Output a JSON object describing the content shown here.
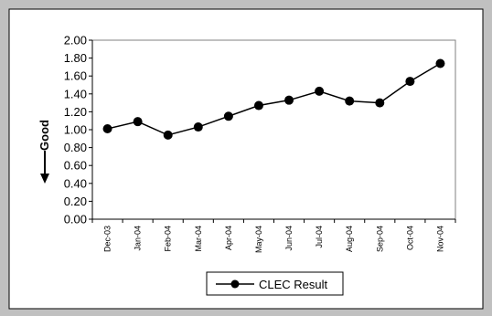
{
  "chart_data": {
    "type": "line",
    "categories": [
      "Dec-03",
      "Jan-04",
      "Feb-04",
      "Mar-04",
      "Apr-04",
      "May-04",
      "Jun-04",
      "Jul-04",
      "Aug-04",
      "Sep-04",
      "Oct-04",
      "Nov-04"
    ],
    "series": [
      {
        "name": "CLEC Result",
        "values": [
          1.01,
          1.09,
          0.94,
          1.03,
          1.15,
          1.27,
          1.33,
          1.43,
          1.32,
          1.3,
          1.54,
          1.74
        ],
        "color": "#000000"
      }
    ],
    "yticks": [
      "0.00",
      "0.20",
      "0.40",
      "0.60",
      "0.80",
      "1.00",
      "1.20",
      "1.40",
      "1.60",
      "1.80",
      "2.00"
    ],
    "ylim": [
      0,
      2
    ],
    "ylabel": "Good",
    "legend_position": "bottom",
    "grid": false
  }
}
